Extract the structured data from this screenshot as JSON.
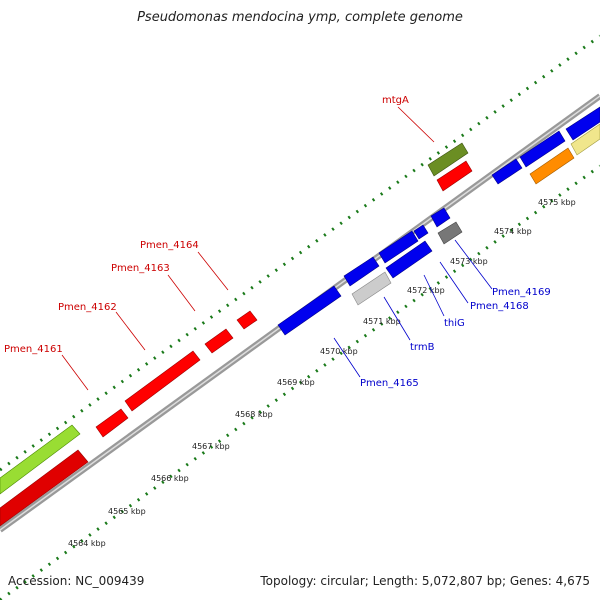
{
  "title": "Pseudomonas mendocina ymp, complete genome",
  "footer": {
    "accession": "Accession: NC_009439",
    "summary": "Topology: circular; Length: 5,072,807 bp; Genes: 4,675"
  },
  "colors": {
    "backbone": "#888888",
    "ticks": "#1a7a1a",
    "forward_label": "#cc0000",
    "reverse_label": "#0000cc",
    "red_gene": "#ff0000",
    "blue_gene": "#0000ee",
    "olive_gene": "#6b8e23",
    "light_green_gene": "#99dd33",
    "gray_gene": "#888888",
    "light_gray_gene": "#cccccc",
    "orange_gene": "#ff8c00",
    "cream_gene": "#f0e68c"
  },
  "scale_labels": [
    "4564 kbp",
    "4565 kbp",
    "4566 kbp",
    "4567 kbp",
    "4568 kbp",
    "4569 kbp",
    "4570 kbp",
    "4571 kbp",
    "4572 kbp",
    "4573 kbp",
    "4574 kbp",
    "4575 kbp"
  ],
  "forward_genes": [
    "mtgA",
    "Pmen_4164",
    "Pmen_4163",
    "Pmen_4162",
    "Pmen_4161"
  ],
  "reverse_genes": [
    "Pmen_4169",
    "Pmen_4168",
    "thiG",
    "trmB",
    "Pmen_4165"
  ]
}
